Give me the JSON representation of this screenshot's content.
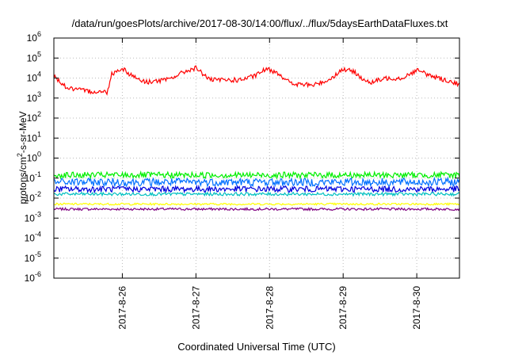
{
  "chart_data": {
    "type": "line",
    "title": "/data/run/goesPlots/archive/2017-08-30/14:00/flux/../flux/5daysEarthDataFluxes.txt",
    "xlabel": "Coordinated Universal Time (UTC)",
    "ylabel_base": "protons/cm",
    "ylabel_exp": "2",
    "ylabel_tail": "-s-sr-MeV",
    "yscale": "log",
    "ylim": [
      1e-06,
      1000000.0
    ],
    "xlim_days_from_2017_08_26": [
      -0.93,
      4.58
    ],
    "grid": true,
    "y_ticks": [
      {
        "exp": -6,
        "base": "10",
        "sup": "-6"
      },
      {
        "exp": -5,
        "base": "10",
        "sup": "-5"
      },
      {
        "exp": -4,
        "base": "10",
        "sup": "-4"
      },
      {
        "exp": -3,
        "base": "10",
        "sup": "-3"
      },
      {
        "exp": -2,
        "base": "10",
        "sup": "-2"
      },
      {
        "exp": -1,
        "base": "10",
        "sup": "-1"
      },
      {
        "exp": 0,
        "base": "10",
        "sup": "0"
      },
      {
        "exp": 1,
        "base": "10",
        "sup": "1"
      },
      {
        "exp": 2,
        "base": "10",
        "sup": "2"
      },
      {
        "exp": 3,
        "base": "10",
        "sup": "3"
      },
      {
        "exp": 4,
        "base": "10",
        "sup": "4"
      },
      {
        "exp": 5,
        "base": "10",
        "sup": "5"
      },
      {
        "exp": 6,
        "base": "10",
        "sup": "6"
      }
    ],
    "x_ticks": [
      {
        "day": 0,
        "label": "2017-8-26"
      },
      {
        "day": 1,
        "label": "2017-8-27"
      },
      {
        "day": 2,
        "label": "2017-8-28"
      },
      {
        "day": 3,
        "label": "2017-8-29"
      },
      {
        "day": 4,
        "label": "2017-8-30"
      }
    ],
    "series": [
      {
        "color": "#ff0000",
        "approx_points_log10": [
          [
            -0.93,
            4.1
          ],
          [
            -0.75,
            3.5
          ],
          [
            -0.5,
            3.35
          ],
          [
            -0.2,
            3.3
          ],
          [
            -0.15,
            4.2
          ],
          [
            0.0,
            4.5
          ],
          [
            0.1,
            4.2
          ],
          [
            0.3,
            3.8
          ],
          [
            0.6,
            3.9
          ],
          [
            0.9,
            4.4
          ],
          [
            1.0,
            4.5
          ],
          [
            1.2,
            3.9
          ],
          [
            1.6,
            3.9
          ],
          [
            1.8,
            4.1
          ],
          [
            1.95,
            4.45
          ],
          [
            2.1,
            4.3
          ],
          [
            2.3,
            3.7
          ],
          [
            2.6,
            3.65
          ],
          [
            2.8,
            3.9
          ],
          [
            3.0,
            4.45
          ],
          [
            3.15,
            4.3
          ],
          [
            3.35,
            3.75
          ],
          [
            3.6,
            4.0
          ],
          [
            3.8,
            4.0
          ],
          [
            4.0,
            4.4
          ],
          [
            4.2,
            4.1
          ],
          [
            4.58,
            3.7
          ]
        ],
        "noise": 0.12
      },
      {
        "color": "#00ee00",
        "level_log10": -0.85,
        "noise": 0.15
      },
      {
        "color": "#0070ff",
        "level_log10": -1.2,
        "noise": 0.2
      },
      {
        "color": "#0000dd",
        "level_log10": -1.55,
        "noise": 0.15
      },
      {
        "color": "#00c0c0",
        "level_log10": -1.8,
        "noise": 0.08
      },
      {
        "color": "#ffff00",
        "level_log10": -2.3,
        "noise": 0.05
      },
      {
        "color": "#800080",
        "level_log10": -2.55,
        "noise": 0.06
      }
    ]
  }
}
